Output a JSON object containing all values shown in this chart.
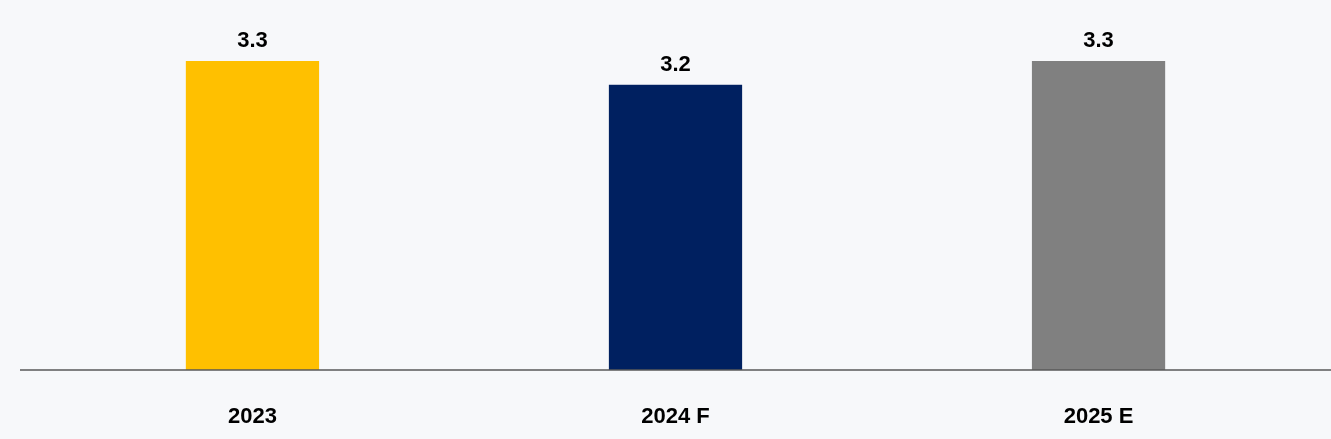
{
  "chart_data": {
    "type": "bar",
    "categories": [
      "2023",
      "2024 F",
      "2025 E"
    ],
    "values": [
      3.3,
      3.2,
      3.3
    ],
    "colors": [
      "#ffc000",
      "#002060",
      "#808080"
    ],
    "ylim": [
      2,
      3.3
    ],
    "data_labels": true,
    "tick_labels": "x"
  }
}
